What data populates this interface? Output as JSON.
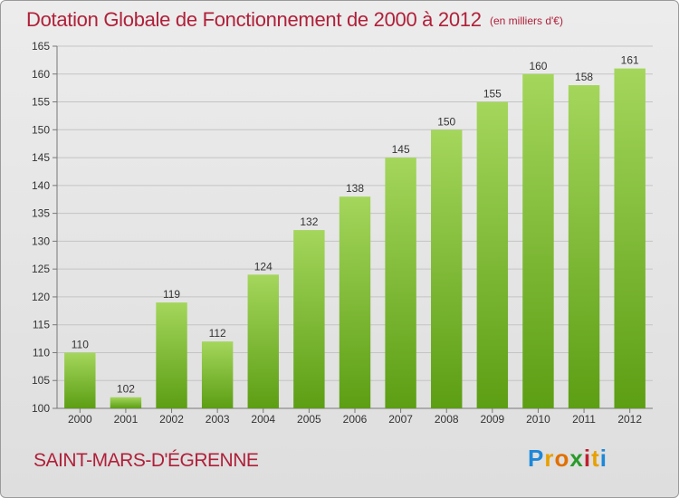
{
  "header": {
    "title": "Dotation Globale de Fonctionnement de 2000 à 2012",
    "unit": "(en milliers d'€)"
  },
  "footer": {
    "commune": "SAINT-MARS-D'ÉGRENNE",
    "brand": "Proxiti",
    "brand_letters": [
      "P",
      "r",
      "o",
      "x",
      "i",
      "t",
      "i"
    ],
    "brand_colors": [
      "#1e88d8",
      "#e8a000",
      "#e07000",
      "#2a9a2a",
      "#c01f2f",
      "#e8a000",
      "#1e88d8"
    ]
  },
  "chart_data": {
    "type": "bar",
    "categories": [
      "2000",
      "2001",
      "2002",
      "2003",
      "2004",
      "2005",
      "2006",
      "2007",
      "2008",
      "2009",
      "2010",
      "2011",
      "2012"
    ],
    "values": [
      110,
      102,
      119,
      112,
      124,
      132,
      138,
      145,
      150,
      155,
      160,
      158,
      161
    ],
    "ylim": [
      100,
      165
    ],
    "yticks": [
      100,
      105,
      110,
      115,
      120,
      125,
      130,
      135,
      140,
      145,
      150,
      155,
      160,
      165
    ],
    "grid": true,
    "bar_color_top": "#a4d65c",
    "bar_color_bottom": "#5c9e14",
    "title_color": "#b0203a"
  }
}
